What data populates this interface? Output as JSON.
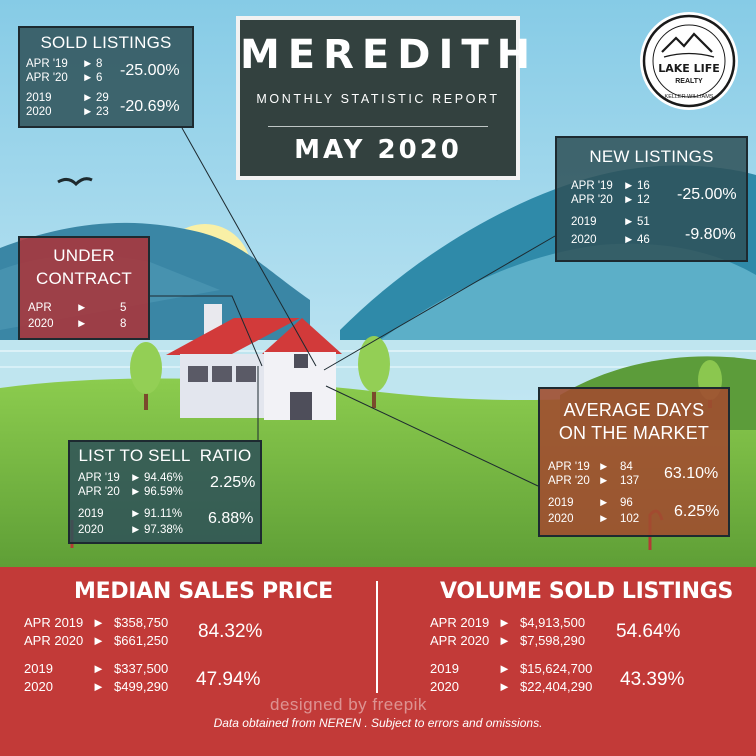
{
  "header": {
    "title": "MEREDITH",
    "subtitle": "MONTHLY STATISTIC REPORT",
    "date": "MAY 2020"
  },
  "logo": {
    "line1": "LAKE LIFE",
    "line2": "REALTY",
    "line3": "KELLER WILLIAMS"
  },
  "sold_listings": {
    "title": "SOLD LISTINGS",
    "rows": [
      {
        "label": "APR '19",
        "value": "8"
      },
      {
        "label": "APR '20",
        "value": "6"
      },
      {
        "label": "2019",
        "value": "29"
      },
      {
        "label": "2020",
        "value": "23"
      }
    ],
    "pct_month": "-25.00%",
    "pct_year": "-20.69%"
  },
  "new_listings": {
    "title": "NEW LISTINGS",
    "rows": [
      {
        "label": "APR '19",
        "value": "16"
      },
      {
        "label": "APR '20",
        "value": "12"
      },
      {
        "label": "2019",
        "value": "51"
      },
      {
        "label": "2020",
        "value": "46"
      }
    ],
    "pct_month": "-25.00%",
    "pct_year": "-9.80%"
  },
  "under_contract": {
    "title_line1": "UNDER",
    "title_line2": "CONTRACT",
    "rows": [
      {
        "label": "APR",
        "value": "5"
      },
      {
        "label": "2020",
        "value": "8"
      }
    ]
  },
  "average_days": {
    "title_line1": "AVERAGE DAYS",
    "title_line2": "ON THE MARKET",
    "rows": [
      {
        "label": "APR '19",
        "value": "84"
      },
      {
        "label": "APR '20",
        "value": "137"
      },
      {
        "label": "2019",
        "value": "96"
      },
      {
        "label": "2020",
        "value": "102"
      }
    ],
    "pct_month": "63.10%",
    "pct_year": "6.25%"
  },
  "list_to_sell": {
    "title": "LIST TO SELL  RATIO",
    "rows": [
      {
        "label": "APR '19",
        "value": "94.46%"
      },
      {
        "label": "APR '20",
        "value": "96.59%"
      },
      {
        "label": "2019",
        "value": "91.11%"
      },
      {
        "label": "2020",
        "value": "97.38%"
      }
    ],
    "pct_month": "2.25%",
    "pct_year": "6.88%"
  },
  "median_price": {
    "title": "MEDIAN SALES PRICE",
    "rows": [
      {
        "label": "APR 2019",
        "value": "$358,750"
      },
      {
        "label": "APR 2020",
        "value": "$661,250"
      },
      {
        "label": "2019",
        "value": "$337,500"
      },
      {
        "label": "2020",
        "value": "$499,290"
      }
    ],
    "pct_month": "84.32%",
    "pct_year": "47.94%"
  },
  "volume_sold": {
    "title": "VOLUME SOLD LISTINGS",
    "rows": [
      {
        "label": "APR 2019",
        "value": "$4,913,500"
      },
      {
        "label": "APR 2020",
        "value": "$7,598,290"
      },
      {
        "label": "2019",
        "value": "$15,624,700"
      },
      {
        "label": "2020",
        "value": "$22,404,290"
      }
    ],
    "pct_month": "54.64%",
    "pct_year": "43.39%"
  },
  "arrow": "►",
  "footer": "Data obtained  from  NEREN .  Subject to errors  and omissions.",
  "watermark": "designed by  freepik",
  "colors": {
    "sky": "#8fd0ea",
    "teal_box": "#2e5258",
    "red_box": "#aa343a",
    "orange_box": "#a04e30",
    "bottom_band": "#c23a38",
    "grass": "#7cc04a",
    "roof": "#d23a3a"
  }
}
